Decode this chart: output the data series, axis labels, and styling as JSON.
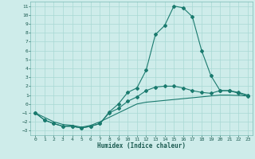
{
  "xlabel": "Humidex (Indice chaleur)",
  "bg_color": "#ceecea",
  "grid_color": "#a8d8d4",
  "line_color": "#1a7a6e",
  "xlim": [
    -0.5,
    23.5
  ],
  "ylim": [
    -3.5,
    11.5
  ],
  "xticks": [
    0,
    1,
    2,
    3,
    4,
    5,
    6,
    7,
    8,
    9,
    10,
    11,
    12,
    13,
    14,
    15,
    16,
    17,
    18,
    19,
    20,
    21,
    22,
    23
  ],
  "yticks": [
    -3,
    -2,
    -1,
    0,
    1,
    2,
    3,
    4,
    5,
    6,
    7,
    8,
    9,
    10,
    11
  ],
  "line1_x": [
    0,
    1,
    2,
    3,
    4,
    5,
    6,
    7,
    8,
    9,
    10,
    11,
    12,
    13,
    14,
    15,
    16,
    17,
    18,
    19,
    20,
    21,
    22,
    23
  ],
  "line1_y": [
    -1.0,
    -1.8,
    -2.2,
    -2.5,
    -2.5,
    -2.7,
    -2.5,
    -2.2,
    -0.9,
    0.0,
    1.3,
    1.8,
    3.8,
    7.8,
    8.8,
    11.0,
    10.8,
    9.8,
    6.0,
    3.2,
    1.5,
    1.5,
    1.2,
    0.9
  ],
  "line2_x": [
    0,
    1,
    2,
    3,
    4,
    5,
    6,
    7,
    8,
    9,
    10,
    11,
    12,
    13,
    14,
    15,
    16,
    17,
    18,
    19,
    20,
    21,
    22,
    23
  ],
  "line2_y": [
    -1.0,
    -1.8,
    -2.2,
    -2.5,
    -2.5,
    -2.7,
    -2.5,
    -2.2,
    -1.0,
    -0.5,
    0.3,
    0.8,
    1.5,
    1.9,
    2.0,
    2.0,
    1.8,
    1.5,
    1.3,
    1.2,
    1.5,
    1.5,
    1.3,
    1.0
  ],
  "line3_x": [
    0,
    1,
    2,
    3,
    4,
    5,
    6,
    7,
    8,
    9,
    10,
    11,
    12,
    13,
    14,
    15,
    16,
    17,
    18,
    19,
    20,
    21,
    22,
    23
  ],
  "line3_y": [
    -1.0,
    -1.5,
    -2.0,
    -2.3,
    -2.4,
    -2.6,
    -2.4,
    -2.0,
    -1.5,
    -1.0,
    -0.5,
    0.0,
    0.2,
    0.3,
    0.4,
    0.5,
    0.6,
    0.7,
    0.8,
    0.9,
    1.0,
    1.0,
    0.95,
    0.9
  ]
}
